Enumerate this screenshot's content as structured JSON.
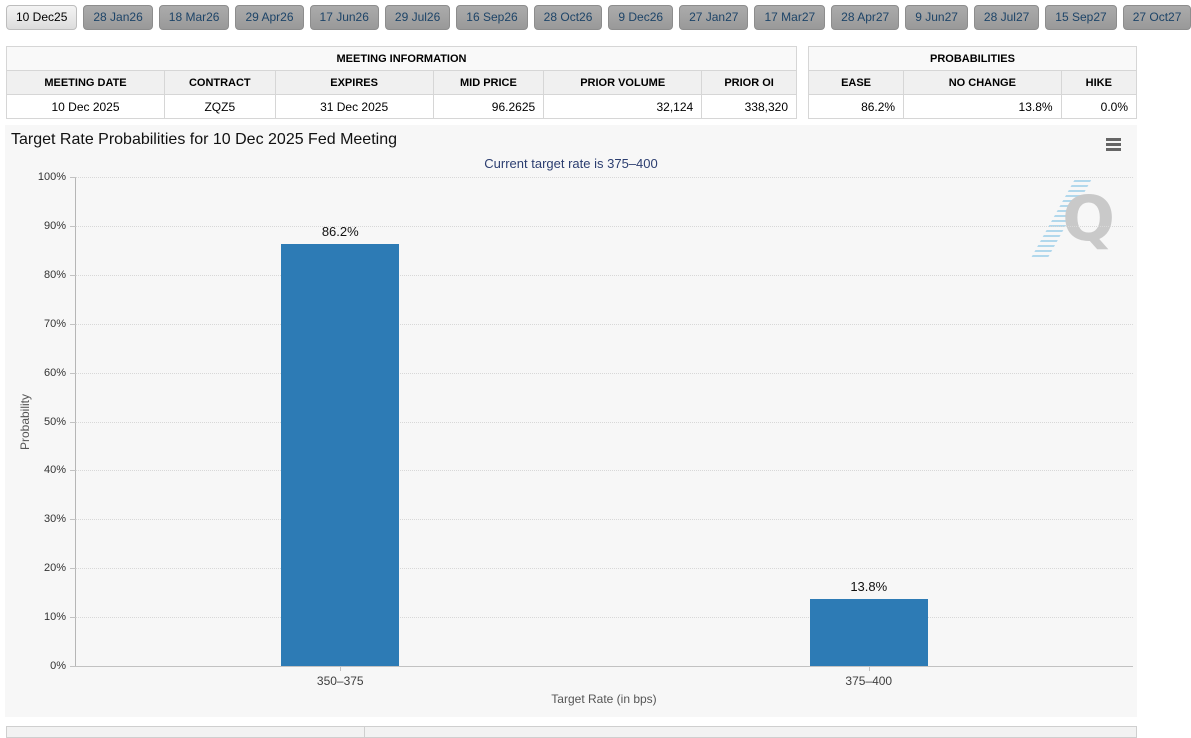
{
  "tabs": {
    "items": [
      {
        "label": "10 Dec25",
        "active": true
      },
      {
        "label": "28 Jan26",
        "active": false
      },
      {
        "label": "18 Mar26",
        "active": false
      },
      {
        "label": "29 Apr26",
        "active": false
      },
      {
        "label": "17 Jun26",
        "active": false
      },
      {
        "label": "29 Jul26",
        "active": false
      },
      {
        "label": "16 Sep26",
        "active": false
      },
      {
        "label": "28 Oct26",
        "active": false
      },
      {
        "label": "9 Dec26",
        "active": false
      },
      {
        "label": "27 Jan27",
        "active": false
      },
      {
        "label": "17 Mar27",
        "active": false
      },
      {
        "label": "28 Apr27",
        "active": false
      },
      {
        "label": "9 Jun27",
        "active": false
      },
      {
        "label": "28 Jul27",
        "active": false
      },
      {
        "label": "15 Sep27",
        "active": false
      },
      {
        "label": "27 Oct27",
        "active": false
      }
    ]
  },
  "meeting_info": {
    "title": "MEETING INFORMATION",
    "columns": [
      "MEETING DATE",
      "CONTRACT",
      "EXPIRES",
      "MID PRICE",
      "PRIOR VOLUME",
      "PRIOR OI"
    ],
    "row": [
      "10 Dec 2025",
      "ZQZ5",
      "31 Dec 2025",
      "96.2625",
      "32,124",
      "338,320"
    ],
    "align": [
      "center",
      "center",
      "center",
      "right",
      "right",
      "right"
    ],
    "col_widths": [
      "20%",
      "14%",
      "20%",
      "14%",
      "20%",
      "12%"
    ]
  },
  "probabilities": {
    "title": "PROBABILITIES",
    "columns": [
      "EASE",
      "NO CHANGE",
      "HIKE"
    ],
    "row": [
      "86.2%",
      "13.8%",
      "0.0%"
    ],
    "align": [
      "right",
      "right",
      "right"
    ],
    "col_widths": [
      "29%",
      "48%",
      "23%"
    ]
  },
  "chart": {
    "menu_icon": "hamburger-menu-icon",
    "watermark_letter": "Q"
  },
  "chart_data": {
    "type": "bar",
    "title": "Target Rate Probabilities for 10 Dec 2025 Fed Meeting",
    "subtitle": "Current target rate is 375–400",
    "categories": [
      "350–375",
      "375–400"
    ],
    "values": [
      86.2,
      13.8
    ],
    "data_labels": [
      "86.2%",
      "13.8%"
    ],
    "xlabel": "Target Rate (in bps)",
    "ylabel": "Probability",
    "ylim": [
      0,
      100
    ],
    "ytick_step": 10,
    "ytick_suffix": "%",
    "grid": true,
    "legend": "none",
    "bar_color": "#2d7bb5"
  }
}
